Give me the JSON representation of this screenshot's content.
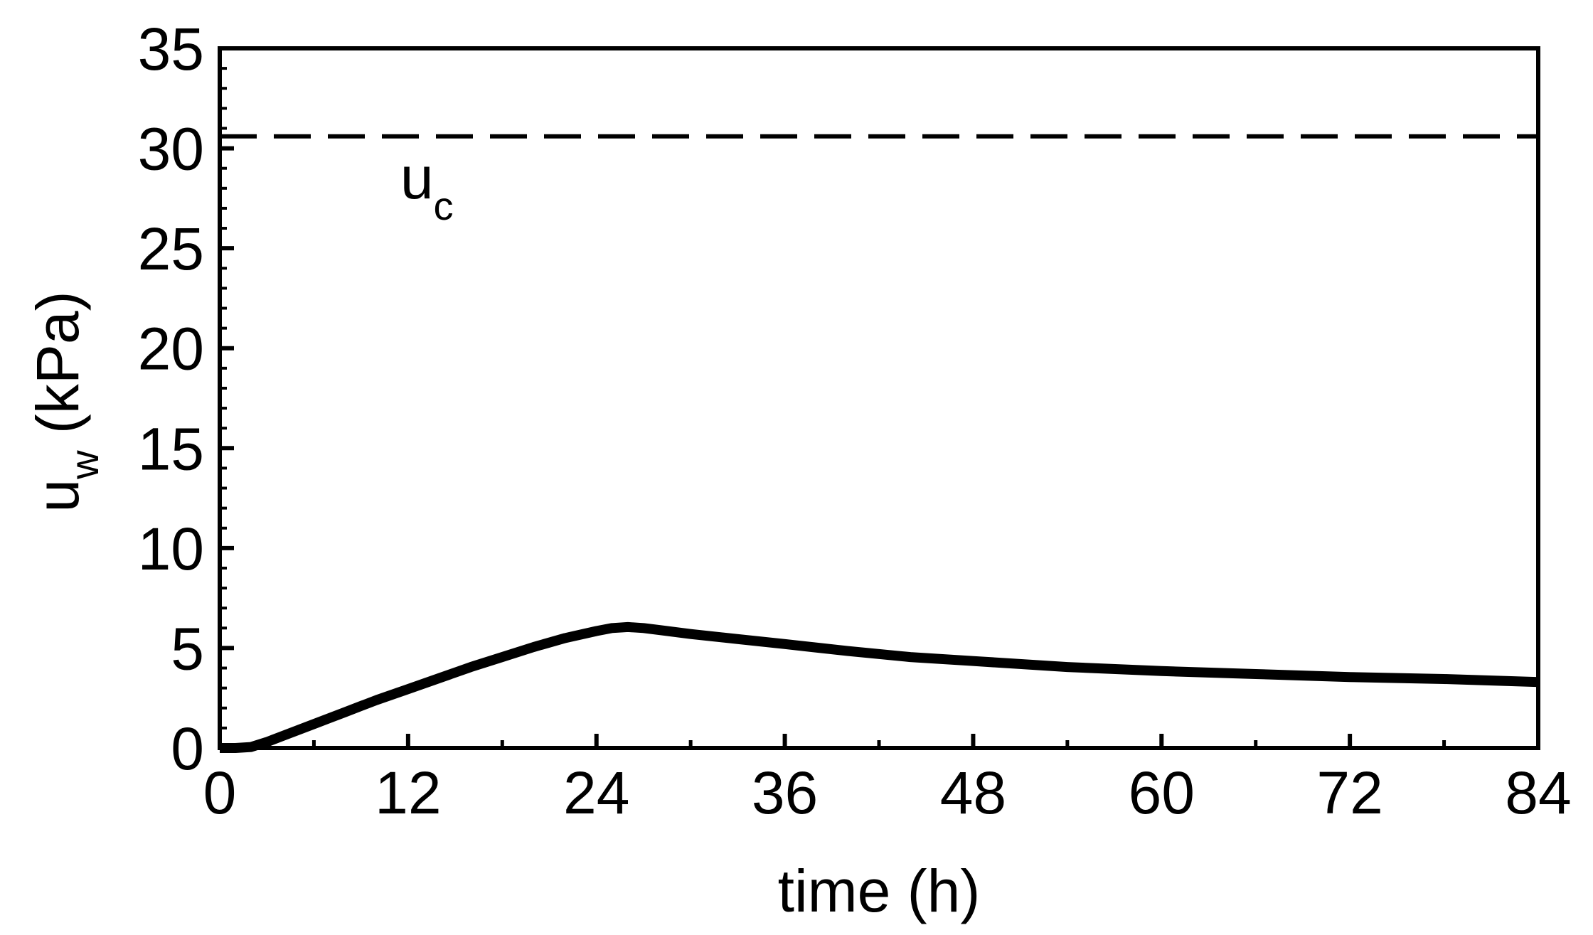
{
  "chart_data": {
    "type": "line",
    "xlabel": "time (h)",
    "ylabel": {
      "main": "u",
      "sub": "w",
      "units": " (kPa)"
    },
    "xlim": [
      0,
      84
    ],
    "ylim": [
      0,
      35
    ],
    "xticks": [
      0,
      12,
      24,
      36,
      48,
      60,
      72,
      84
    ],
    "yticks": [
      0,
      5,
      10,
      15,
      20,
      25,
      30,
      35
    ],
    "x_minor_step": 6,
    "y_minor_step": 1,
    "grid": false,
    "series": [
      {
        "style": "solid",
        "color": "#000000",
        "x": [
          0,
          1,
          2,
          3,
          4,
          6,
          8,
          10,
          12,
          14,
          16,
          18,
          20,
          22,
          24,
          25,
          26,
          27,
          28,
          30,
          33,
          36,
          40,
          44,
          48,
          54,
          60,
          66,
          72,
          78,
          84
        ],
        "y": [
          0,
          0,
          0.05,
          0.3,
          0.6,
          1.2,
          1.8,
          2.4,
          2.95,
          3.5,
          4.05,
          4.55,
          5.05,
          5.5,
          5.85,
          6.0,
          6.05,
          6.0,
          5.9,
          5.7,
          5.45,
          5.2,
          4.85,
          4.55,
          4.35,
          4.05,
          3.85,
          3.7,
          3.55,
          3.45,
          3.3
        ]
      }
    ],
    "reference_lines": [
      {
        "y": 30.6,
        "style": "dashed",
        "color": "#000000",
        "label": {
          "main": "u",
          "sub": "c"
        },
        "label_at": [
          11.5,
          27.5
        ]
      }
    ]
  }
}
